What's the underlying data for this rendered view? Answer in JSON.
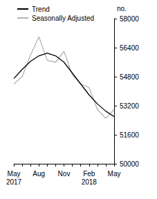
{
  "chart_data": {
    "type": "line",
    "y_label": "no.",
    "categories": [
      "May\n2017",
      null,
      null,
      "Aug",
      null,
      null,
      "Nov",
      null,
      null,
      "Feb\n2018",
      null,
      null,
      "May"
    ],
    "series": [
      {
        "name": "Trend",
        "color": "#000000",
        "values": [
          54700,
          55200,
          55650,
          55950,
          56100,
          55950,
          55600,
          55000,
          54400,
          53800,
          53300,
          52900,
          52600
        ]
      },
      {
        "name": "Seasonally Adjusted",
        "color": "#b3b3b3",
        "values": [
          54400,
          54800,
          56000,
          57000,
          55700,
          55600,
          56200,
          54900,
          54400,
          54200,
          53000,
          52500,
          53000
        ]
      }
    ],
    "ylim": [
      50000,
      58000
    ],
    "yticks": [
      50000,
      51600,
      53200,
      54800,
      56400,
      58000
    ],
    "grid": false,
    "legend": "top-left"
  }
}
